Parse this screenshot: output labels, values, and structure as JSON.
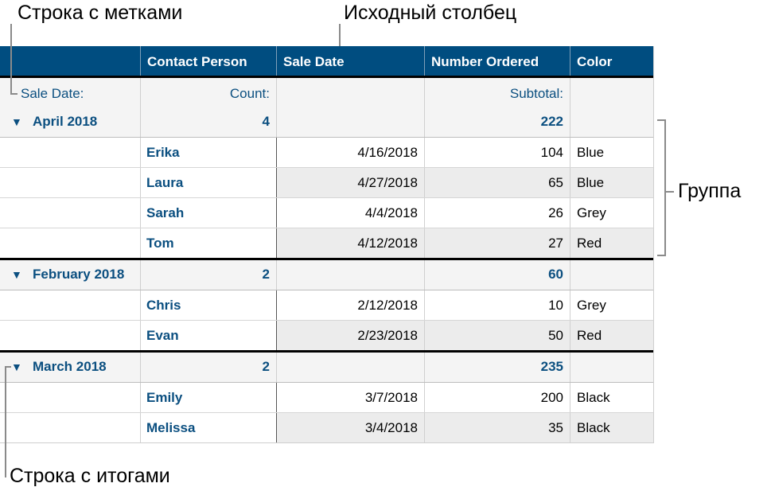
{
  "callouts": {
    "label_row": "Строка с метками",
    "source_column": "Исходный столбец",
    "group": "Группа",
    "summary_row": "Строка с итогами"
  },
  "colors": {
    "header": "#004d80",
    "accent_text": "#0b4f80",
    "summary_bg": "#f4f4f4",
    "alt_row": "#ececec"
  },
  "table": {
    "columns": [
      "",
      "Contact Person",
      "Sale Date",
      "Number Ordered",
      "Color"
    ],
    "label_row": {
      "group_label": "Sale Date:",
      "count_label": "Count:",
      "subtotal_label": "Subtotal:"
    },
    "groups": [
      {
        "name": "April 2018",
        "count": "4",
        "subtotal": "222",
        "expanded": true,
        "rows": [
          {
            "contact": "Erika",
            "date": "4/16/2018",
            "number": "104",
            "color": "Blue"
          },
          {
            "contact": "Laura",
            "date": "4/27/2018",
            "number": "65",
            "color": "Blue"
          },
          {
            "contact": "Sarah",
            "date": "4/4/2018",
            "number": "26",
            "color": "Grey"
          },
          {
            "contact": "Tom",
            "date": "4/12/2018",
            "number": "27",
            "color": "Red"
          }
        ]
      },
      {
        "name": "February 2018",
        "count": "2",
        "subtotal": "60",
        "expanded": true,
        "rows": [
          {
            "contact": "Chris",
            "date": "2/12/2018",
            "number": "10",
            "color": "Grey"
          },
          {
            "contact": "Evan",
            "date": "2/23/2018",
            "number": "50",
            "color": "Red"
          }
        ]
      },
      {
        "name": "March 2018",
        "count": "2",
        "subtotal": "235",
        "expanded": true,
        "rows": [
          {
            "contact": "Emily",
            "date": "3/7/2018",
            "number": "200",
            "color": "Black"
          },
          {
            "contact": "Melissa",
            "date": "3/4/2018",
            "number": "35",
            "color": "Black"
          }
        ]
      }
    ]
  }
}
